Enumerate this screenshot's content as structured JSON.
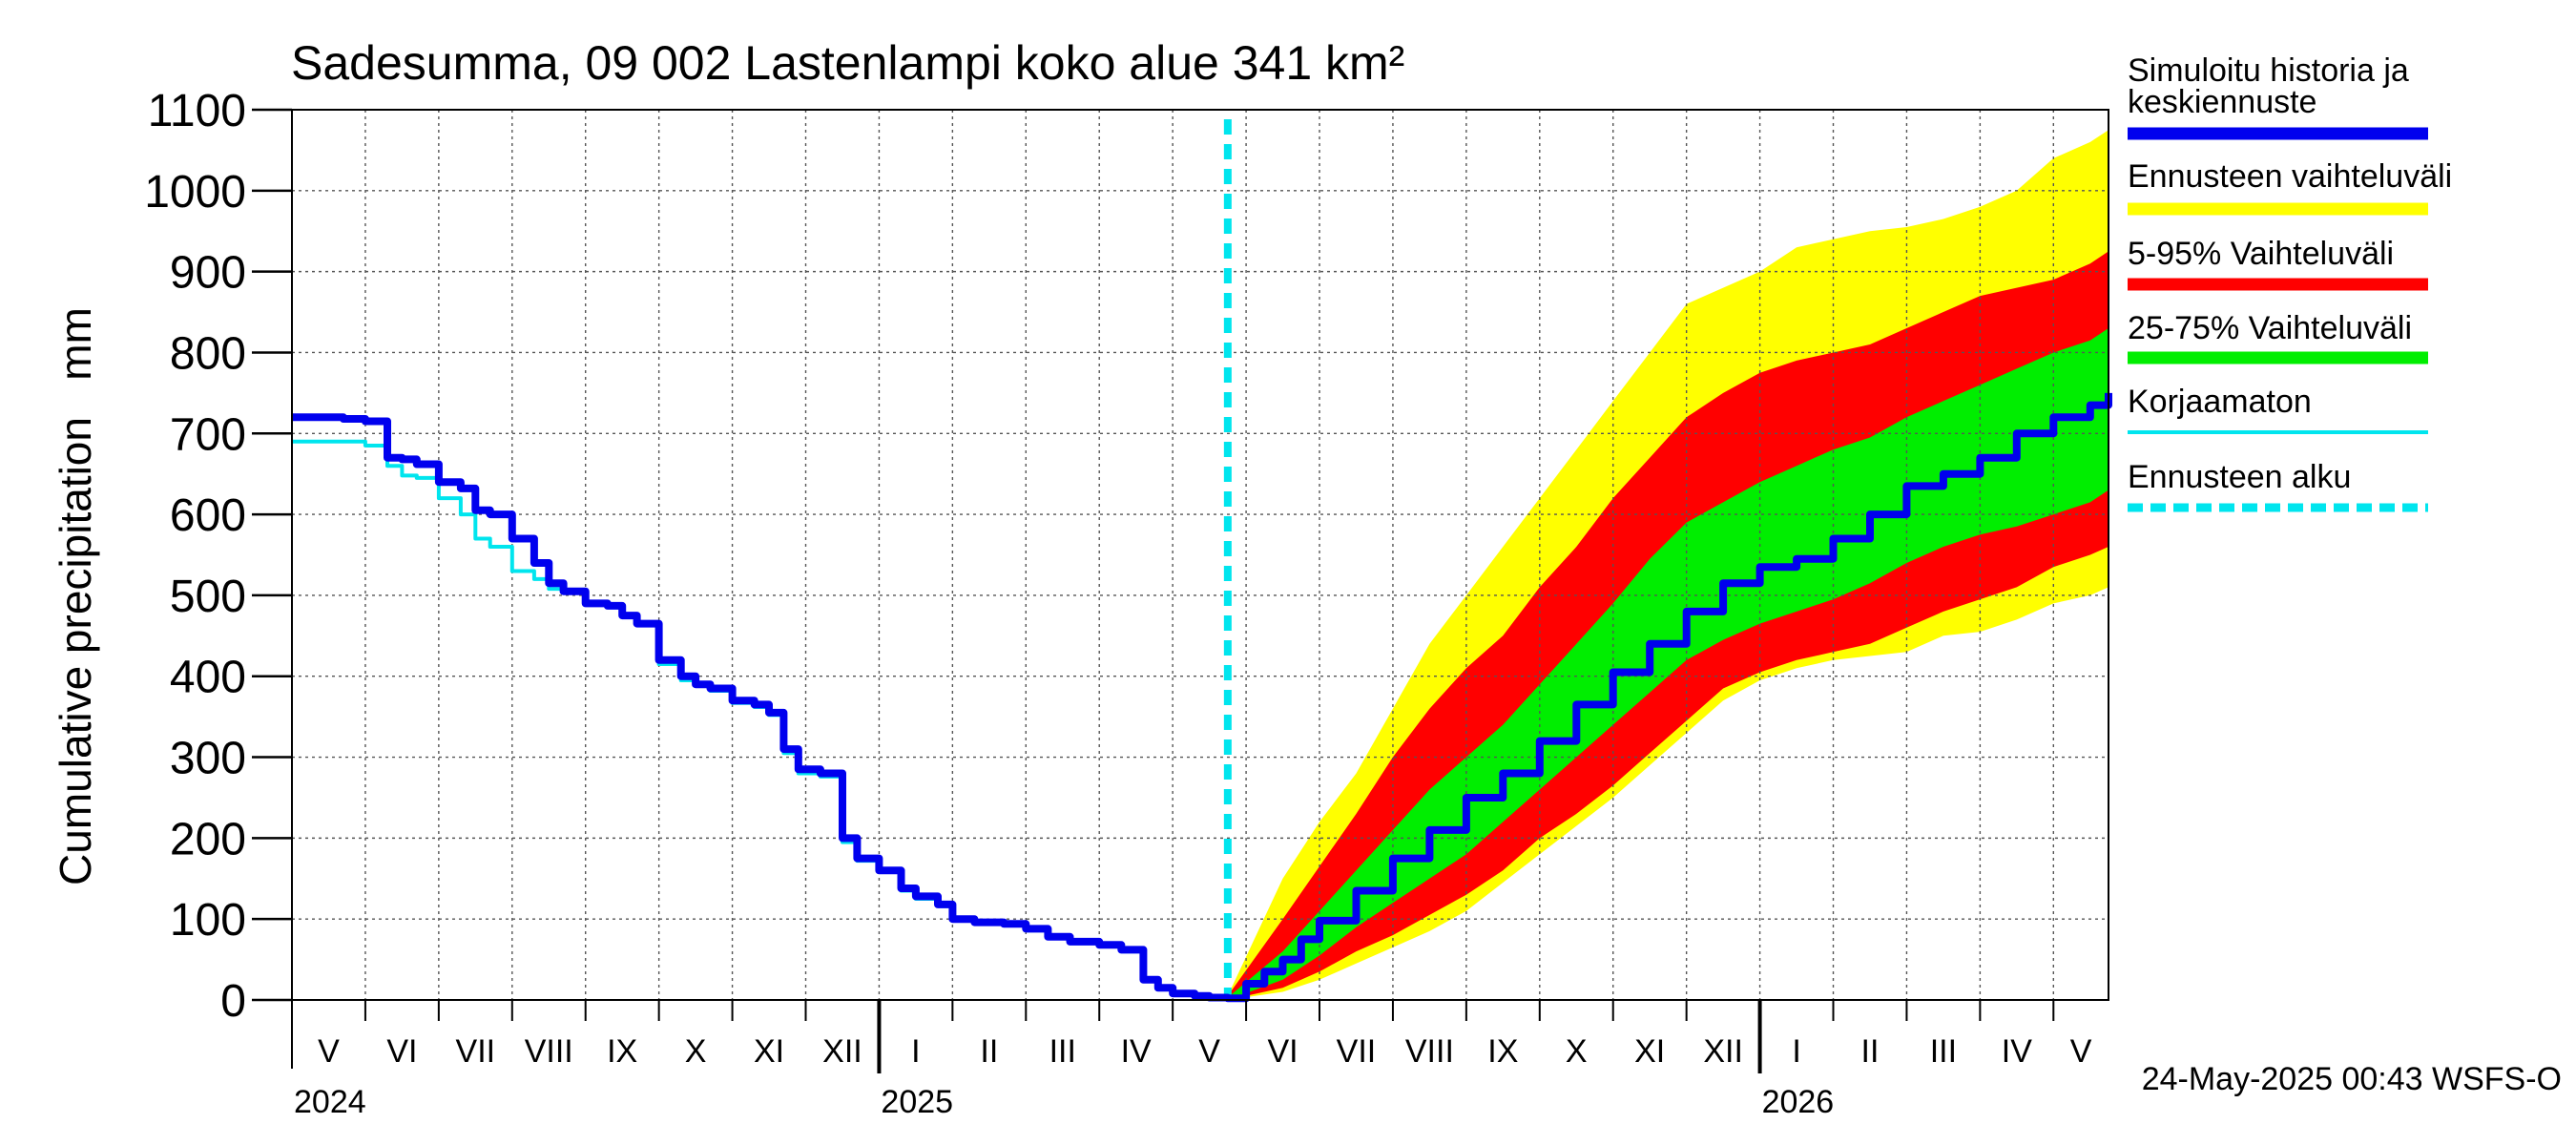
{
  "chart_data": {
    "type": "area",
    "title": "Sadesumma, 09 002 Lastenlampi koko alue 341 km²",
    "ylabel": "Cumulative precipitation   mm",
    "xlabel": "",
    "ylim": [
      0,
      1100
    ],
    "yticks": [
      0,
      100,
      200,
      300,
      400,
      500,
      600,
      700,
      800,
      900,
      1000,
      1100
    ],
    "grid": true,
    "legend_position": "right",
    "months": [
      {
        "label": "V",
        "start": 0.0,
        "end": 1.0
      },
      {
        "label": "VI",
        "start": 1.0,
        "end": 2.0
      },
      {
        "label": "VII",
        "start": 2.0,
        "end": 3.0
      },
      {
        "label": "VIII",
        "start": 3.0,
        "end": 4.0
      },
      {
        "label": "IX",
        "start": 4.0,
        "end": 5.0
      },
      {
        "label": "X",
        "start": 5.0,
        "end": 6.0
      },
      {
        "label": "XI",
        "start": 6.0,
        "end": 7.0
      },
      {
        "label": "XII",
        "start": 7.0,
        "end": 8.0
      },
      {
        "label": "I",
        "start": 8.0,
        "end": 9.0
      },
      {
        "label": "II",
        "start": 9.0,
        "end": 10.0
      },
      {
        "label": "III",
        "start": 10.0,
        "end": 11.0
      },
      {
        "label": "IV",
        "start": 11.0,
        "end": 12.0
      },
      {
        "label": "V",
        "start": 12.0,
        "end": 13.0
      },
      {
        "label": "VI",
        "start": 13.0,
        "end": 14.0
      },
      {
        "label": "VII",
        "start": 14.0,
        "end": 15.0
      },
      {
        "label": "VIII",
        "start": 15.0,
        "end": 16.0
      },
      {
        "label": "IX",
        "start": 16.0,
        "end": 17.0
      },
      {
        "label": "X",
        "start": 17.0,
        "end": 18.0
      },
      {
        "label": "XI",
        "start": 18.0,
        "end": 19.0
      },
      {
        "label": "XII",
        "start": 19.0,
        "end": 20.0
      },
      {
        "label": "I",
        "start": 20.0,
        "end": 21.0
      },
      {
        "label": "II",
        "start": 21.0,
        "end": 22.0
      },
      {
        "label": "III",
        "start": 22.0,
        "end": 23.0
      },
      {
        "label": "IV",
        "start": 23.0,
        "end": 24.0
      },
      {
        "label": "V",
        "start": 24.0,
        "end": 24.75
      }
    ],
    "years": [
      {
        "label": "2024",
        "at": 0.0
      },
      {
        "label": "2025",
        "at": 8.0
      },
      {
        "label": "2026",
        "at": 20.0
      }
    ],
    "x_range": [
      0,
      24.75
    ],
    "forecast_start": 12.75,
    "series": [
      {
        "name": "Simuloitu historia ja keskiennuste",
        "color": "#0000ee",
        "x": [
          0,
          0.3,
          0.7,
          1.0,
          1.3,
          1.5,
          1.7,
          2.0,
          2.3,
          2.5,
          2.7,
          3.0,
          3.3,
          3.5,
          3.7,
          4.0,
          4.3,
          4.5,
          4.7,
          5.0,
          5.3,
          5.5,
          5.7,
          6.0,
          6.3,
          6.5,
          6.7,
          6.9,
          7.2,
          7.5,
          7.7,
          8.0,
          8.3,
          8.5,
          8.8,
          9.0,
          9.3,
          9.7,
          10.0,
          10.3,
          10.6,
          11.0,
          11.3,
          11.6,
          11.8,
          12.0,
          12.3,
          12.5,
          12.75,
          13.0,
          13.25,
          13.5,
          13.75,
          14.0,
          14.5,
          15.0,
          15.5,
          16.0,
          16.5,
          17.0,
          17.5,
          18.0,
          18.5,
          19.0,
          19.5,
          20.0,
          20.5,
          21.0,
          21.5,
          22.0,
          22.5,
          23.0,
          23.5,
          24.0,
          24.5,
          24.75
        ],
        "values": [
          720,
          720,
          718,
          715,
          670,
          668,
          662,
          640,
          632,
          605,
          600,
          570,
          540,
          515,
          505,
          490,
          487,
          475,
          465,
          420,
          400,
          390,
          385,
          370,
          365,
          355,
          310,
          285,
          280,
          200,
          175,
          160,
          138,
          128,
          118,
          100,
          96,
          94,
          88,
          78,
          72,
          68,
          62,
          25,
          15,
          8,
          5,
          3,
          2,
          20,
          35,
          50,
          75,
          98,
          135,
          175,
          210,
          250,
          280,
          320,
          365,
          405,
          440,
          480,
          515,
          535,
          545,
          570,
          600,
          635,
          650,
          670,
          700,
          720,
          735,
          750
        ]
      },
      {
        "name": "Korjaamaton",
        "color": "#00e5ee",
        "x": [
          0,
          0.5,
          1.0,
          1.3,
          1.5,
          1.7,
          2.0,
          2.3,
          2.5,
          2.7,
          3.0,
          3.3,
          3.5,
          3.7,
          4.0,
          4.3,
          4.5,
          4.7,
          5.0,
          5.3,
          5.5,
          5.7,
          6.0,
          6.3,
          6.5,
          6.7,
          6.9,
          7.2,
          7.5,
          7.7,
          8.0,
          8.3,
          8.5,
          8.8,
          9.0,
          9.3,
          9.7,
          10.0,
          10.3,
          10.6,
          11.0,
          11.3,
          11.6,
          11.8,
          12.0,
          12.3,
          12.5,
          12.75
        ],
        "values": [
          690,
          690,
          685,
          660,
          648,
          645,
          620,
          600,
          570,
          560,
          530,
          520,
          508,
          503,
          490,
          485,
          473,
          463,
          415,
          395,
          388,
          382,
          367,
          362,
          352,
          305,
          280,
          276,
          195,
          172,
          158,
          135,
          125,
          116,
          98,
          94,
          92,
          86,
          76,
          70,
          66,
          60,
          23,
          13,
          6,
          4,
          2,
          1
        ]
      }
    ],
    "bands": [
      {
        "name": "Ennusteen vaihteluväli",
        "color": "#ffff00",
        "x": [
          12.75,
          13.5,
          14.0,
          14.5,
          15.0,
          15.5,
          16.0,
          16.5,
          17.0,
          17.5,
          18.0,
          18.5,
          19.0,
          19.5,
          20.0,
          20.5,
          21.0,
          21.5,
          22.0,
          22.5,
          23.0,
          23.5,
          24.0,
          24.5,
          24.75
        ],
        "upper": [
          5,
          150,
          220,
          280,
          360,
          440,
          500,
          560,
          620,
          680,
          740,
          800,
          860,
          880,
          900,
          930,
          940,
          950,
          955,
          965,
          980,
          1000,
          1040,
          1060,
          1075
        ],
        "lower": [
          0,
          10,
          25,
          45,
          65,
          85,
          110,
          145,
          180,
          215,
          250,
          290,
          330,
          370,
          395,
          410,
          420,
          425,
          430,
          450,
          455,
          470,
          490,
          500,
          510
        ]
      },
      {
        "name": "5-95% Vaihteluväli",
        "color": "#ff0000",
        "x": [
          12.75,
          13.5,
          14.0,
          14.5,
          15.0,
          15.5,
          16.0,
          16.5,
          17.0,
          17.5,
          18.0,
          18.5,
          19.0,
          19.5,
          20.0,
          20.5,
          21.0,
          21.5,
          22.0,
          22.5,
          23.0,
          23.5,
          24.0,
          24.5,
          24.75
        ],
        "upper": [
          5,
          100,
          165,
          230,
          300,
          360,
          410,
          450,
          510,
          560,
          620,
          670,
          720,
          750,
          775,
          790,
          800,
          810,
          830,
          850,
          870,
          880,
          890,
          910,
          925
        ],
        "lower": [
          0,
          15,
          35,
          60,
          80,
          105,
          130,
          160,
          200,
          230,
          265,
          305,
          345,
          385,
          405,
          420,
          430,
          440,
          460,
          480,
          495,
          510,
          535,
          550,
          560
        ]
      },
      {
        "name": "25-75% Vaihteluväli",
        "color": "#00ee00",
        "x": [
          12.75,
          13.5,
          14.0,
          14.5,
          15.0,
          15.5,
          16.0,
          16.5,
          17.0,
          17.5,
          18.0,
          18.5,
          19.0,
          19.5,
          20.0,
          20.5,
          21.0,
          21.5,
          22.0,
          22.5,
          23.0,
          23.5,
          24.0,
          24.5,
          24.75
        ],
        "upper": [
          3,
          60,
          110,
          160,
          210,
          260,
          300,
          340,
          390,
          440,
          490,
          545,
          590,
          615,
          640,
          660,
          680,
          695,
          720,
          740,
          760,
          780,
          800,
          815,
          830
        ],
        "lower": [
          0,
          25,
          55,
          90,
          120,
          150,
          180,
          220,
          260,
          300,
          340,
          380,
          420,
          445,
          465,
          480,
          495,
          515,
          540,
          560,
          575,
          585,
          600,
          615,
          630
        ]
      }
    ],
    "legend": [
      {
        "label": "Simuloitu historia ja keskiennuste",
        "color": "#0000ee",
        "style": "thick"
      },
      {
        "label": "Ennusteen vaihteluväli",
        "color": "#ffff00",
        "style": "thick"
      },
      {
        "label": "5-95% Vaihteluväli",
        "color": "#ff0000",
        "style": "thick"
      },
      {
        "label": "25-75% Vaihteluväli",
        "color": "#00ee00",
        "style": "thick"
      },
      {
        "label": "Korjaamaton",
        "color": "#00e5ee",
        "style": "thin"
      },
      {
        "label": "Ennusteen alku",
        "color": "#00e5ee",
        "style": "dashed"
      }
    ],
    "footer": "24-May-2025 00:43 WSFS-O"
  }
}
